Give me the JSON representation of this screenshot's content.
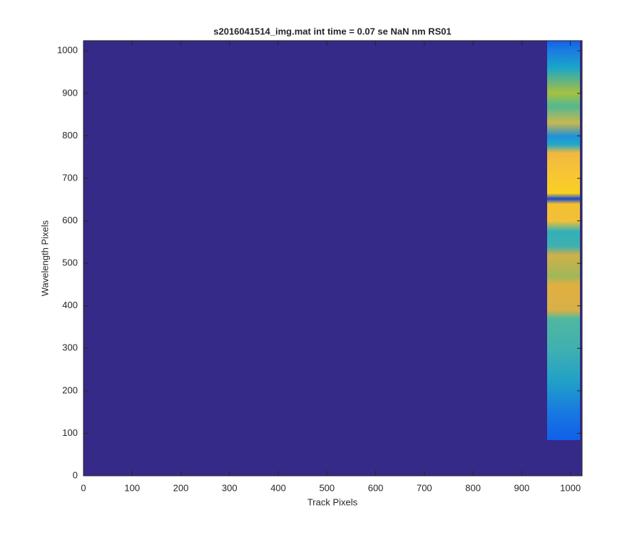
{
  "chart_data": {
    "type": "image",
    "title": "s2016041514_img.mat int time = 0.07 se  NaN nm RS01",
    "xlabel": "Track Pixels",
    "ylabel": "Wavelength Pixels",
    "xlim": [
      0,
      1024
    ],
    "ylim": [
      0,
      1024
    ],
    "xticks": [
      0,
      100,
      200,
      300,
      400,
      500,
      600,
      700,
      800,
      900,
      1000
    ],
    "yticks": [
      0,
      100,
      200,
      300,
      400,
      500,
      600,
      700,
      800,
      900,
      1000
    ],
    "color": "#352a87"
  }
}
